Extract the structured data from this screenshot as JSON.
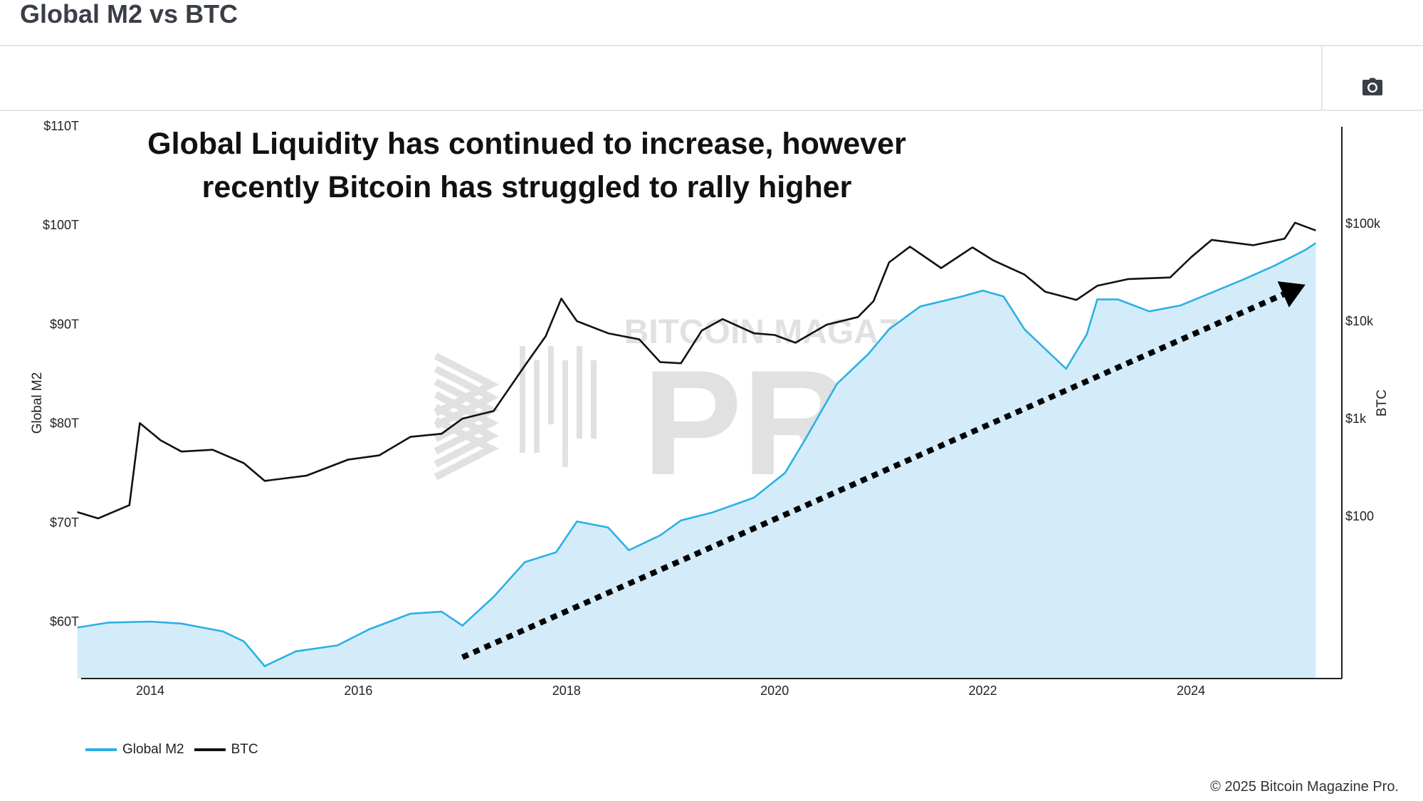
{
  "header": {
    "title": "Global M2 vs BTC",
    "camera_icon": "camera-icon"
  },
  "chart_data": {
    "type": "line",
    "annotation_line1": "Global Liquidity has continued to increase, however",
    "annotation_line2": "recently Bitcoin has struggled to rally higher",
    "x_ticks": [
      "2014",
      "2016",
      "2018",
      "2020",
      "2022",
      "2024"
    ],
    "y_left": {
      "label": "Global M2",
      "ticks": [
        "$60T",
        "$70T",
        "$80T",
        "$90T",
        "$100T",
        "$110T"
      ],
      "range": [
        54,
        110
      ]
    },
    "y_right": {
      "label": "BTC",
      "scale": "log",
      "ticks": [
        "$100",
        "$1k",
        "$10k",
        "$100k"
      ],
      "range": [
        1.6,
        1000000
      ]
    },
    "watermark": "BITCOIN MAGAZINE PRO",
    "colors": {
      "m2_line": "#2bb0e6",
      "m2_fill": "#d4ecf9",
      "btc_line": "#111111",
      "trend_arrow": "#000000"
    },
    "series": [
      {
        "name": "Global M2",
        "axis": "left",
        "x": [
          2013.3,
          2013.6,
          2014.0,
          2014.3,
          2014.7,
          2014.9,
          2015.1,
          2015.4,
          2015.8,
          2016.1,
          2016.5,
          2016.8,
          2017.0,
          2017.3,
          2017.6,
          2017.9,
          2018.1,
          2018.4,
          2018.6,
          2018.9,
          2019.1,
          2019.4,
          2019.8,
          2020.1,
          2020.3,
          2020.6,
          2020.9,
          2021.1,
          2021.4,
          2021.8,
          2022.0,
          2022.2,
          2022.4,
          2022.6,
          2022.8,
          2023.0,
          2023.1,
          2023.3,
          2023.6,
          2023.9,
          2024.2,
          2024.5,
          2024.8,
          2025.1,
          2025.2
        ],
        "y": [
          59.4,
          59.9,
          60.0,
          59.8,
          59.0,
          58.0,
          55.5,
          57.0,
          57.6,
          59.2,
          60.8,
          61.0,
          59.6,
          62.5,
          66.0,
          67.0,
          70.1,
          69.5,
          67.2,
          68.7,
          70.2,
          71.0,
          72.5,
          75.0,
          78.5,
          84.0,
          87.0,
          89.5,
          91.8,
          92.8,
          93.4,
          92.8,
          89.5,
          87.5,
          85.5,
          89.0,
          92.5,
          92.5,
          91.3,
          91.9,
          93.2,
          94.5,
          95.9,
          97.5,
          98.2
        ]
      },
      {
        "name": "BTC",
        "axis": "right",
        "x": [
          2013.3,
          2013.5,
          2013.8,
          2013.9,
          2014.1,
          2014.3,
          2014.6,
          2014.9,
          2015.1,
          2015.5,
          2015.9,
          2016.2,
          2016.5,
          2016.8,
          2017.0,
          2017.3,
          2017.6,
          2017.8,
          2017.95,
          2018.1,
          2018.4,
          2018.7,
          2018.9,
          2019.1,
          2019.3,
          2019.5,
          2019.8,
          2020.0,
          2020.2,
          2020.5,
          2020.8,
          2020.95,
          2021.1,
          2021.3,
          2021.6,
          2021.9,
          2022.1,
          2022.4,
          2022.6,
          2022.9,
          2023.1,
          2023.4,
          2023.8,
          2024.0,
          2024.2,
          2024.6,
          2024.9,
          2025.0,
          2025.2
        ],
        "y": [
          110,
          95,
          130,
          900,
          600,
          460,
          480,
          350,
          230,
          260,
          380,
          420,
          650,
          700,
          1000,
          1200,
          3500,
          7000,
          17000,
          10000,
          7500,
          6500,
          3800,
          3700,
          8000,
          10500,
          7500,
          7200,
          6000,
          9200,
          11000,
          16000,
          40000,
          58000,
          35000,
          57000,
          42000,
          30000,
          20000,
          16500,
          23000,
          27000,
          28000,
          45000,
          68000,
          60000,
          70000,
          102000,
          85000
        ]
      }
    ],
    "trend_arrow": {
      "from": {
        "x": 2017.0,
        "y": 56.4
      },
      "to": {
        "x": 2025.1,
        "y": 94.0
      }
    },
    "legend_position": "bottom-left",
    "grid": false
  },
  "legend": {
    "items": [
      {
        "label": "Global M2"
      },
      {
        "label": "BTC"
      }
    ]
  },
  "footer": {
    "copyright": "© 2025 Bitcoin Magazine Pro."
  }
}
